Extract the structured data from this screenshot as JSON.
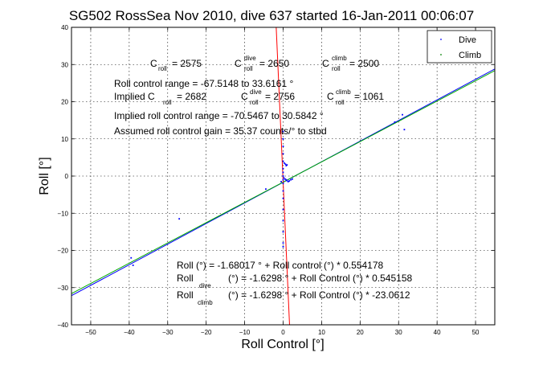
{
  "chart_data": {
    "type": "scatter",
    "title": "SG502 RossSea Nov 2010, dive 637 started 16-Jan-2011 00:06:07",
    "xlabel": "Roll Control [°]",
    "ylabel": "Roll [°]",
    "xlim": [
      -55,
      55
    ],
    "ylim": [
      -40,
      40
    ],
    "xticks": [
      -50,
      -40,
      -30,
      -20,
      -10,
      0,
      10,
      20,
      30,
      40,
      50
    ],
    "yticks": [
      -40,
      -30,
      -20,
      -10,
      0,
      10,
      20,
      30,
      40
    ],
    "grid": true,
    "legend_position": "top-right",
    "series": [
      {
        "name": "Dive",
        "color": "#0000ff",
        "marker": "dot",
        "points": [
          [
            0,
            12
          ],
          [
            0,
            10
          ],
          [
            0,
            8
          ],
          [
            0,
            6
          ],
          [
            0,
            4
          ],
          [
            0,
            2
          ],
          [
            0,
            1
          ],
          [
            0,
            0
          ],
          [
            0,
            -1
          ],
          [
            0,
            -2
          ],
          [
            0,
            -4
          ],
          [
            0,
            -6
          ],
          [
            0,
            -9
          ],
          [
            0,
            -12
          ],
          [
            0,
            -15
          ],
          [
            0,
            -18
          ],
          [
            0,
            -19
          ],
          [
            0.3,
            3.5
          ],
          [
            0.6,
            3.2
          ],
          [
            0.8,
            2.8
          ],
          [
            1.0,
            3.0
          ],
          [
            0.2,
            -0.5
          ],
          [
            0.5,
            -0.8
          ],
          [
            0.8,
            -1.0
          ],
          [
            1.0,
            -1.2
          ],
          [
            1.3,
            -1.5
          ],
          [
            1.6,
            -1.3
          ],
          [
            2.0,
            -1.0
          ],
          [
            2.4,
            -0.8
          ],
          [
            -0.5,
            -1.5
          ],
          [
            -4.5,
            -3.5
          ],
          [
            -27,
            -11.5
          ],
          [
            -39,
            -24
          ],
          [
            -39.5,
            -22
          ],
          [
            29,
            14.5
          ],
          [
            31,
            16.5
          ],
          [
            31.5,
            12.5
          ]
        ]
      },
      {
        "name": "Climb",
        "color": "#008000",
        "marker": "dot",
        "points": []
      }
    ],
    "fit_lines": [
      {
        "label": "Roll",
        "color": "#0000ff",
        "intercept": -1.68017,
        "slope": 0.554178
      },
      {
        "label": "Roll dive",
        "color": "#00aa00",
        "intercept": -1.6298,
        "slope": 0.545158
      },
      {
        "label": "Roll climb",
        "color": "#ff0000",
        "intercept": -1.6298,
        "slope": -23.0612
      }
    ],
    "annotations": {
      "c_roll": "C",
      "c_roll_sub": "roll",
      "c_roll_val": " = 2575",
      "c_dive": "C",
      "c_dive_sup": "dive",
      "c_dive_sub": "roll",
      "c_dive_val": " = 2650",
      "c_climb": "C",
      "c_climb_sup": "climb",
      "c_climb_sub": "roll",
      "c_climb_val": " = 2500",
      "range": "Roll control range = -67.5148 to 33.6161 °",
      "implied": "Implied C",
      "implied_sub": "roll",
      "implied_val": " = 2682",
      "implied_dive": "C",
      "implied_dive_sup": "dive",
      "implied_dive_sub": "roll",
      "implied_dive_val": " = 2756",
      "implied_climb": "C",
      "implied_climb_sup": "climb",
      "implied_climb_sub": "roll",
      "implied_climb_val": " = 1061",
      "implied_range": "Implied roll control range = -70.5467 to 30.5842 °",
      "gain": "Assumed roll control gain = 35.37 counts/° to stbd",
      "fit1": "Roll (°) = -1.68017 ° + Roll control (°) * 0.554178",
      "fit2_a": "Roll",
      "fit2_b": "(°) = -1.6298 ° + Roll Control (°) * 0.545158",
      "fit3_a": "Roll",
      "fit3_sub": "dive",
      "fit3_sub2": "climb",
      "fit3_b": "(°) = -1.6298 ° + Roll Control (°) * -23.0612"
    }
  }
}
